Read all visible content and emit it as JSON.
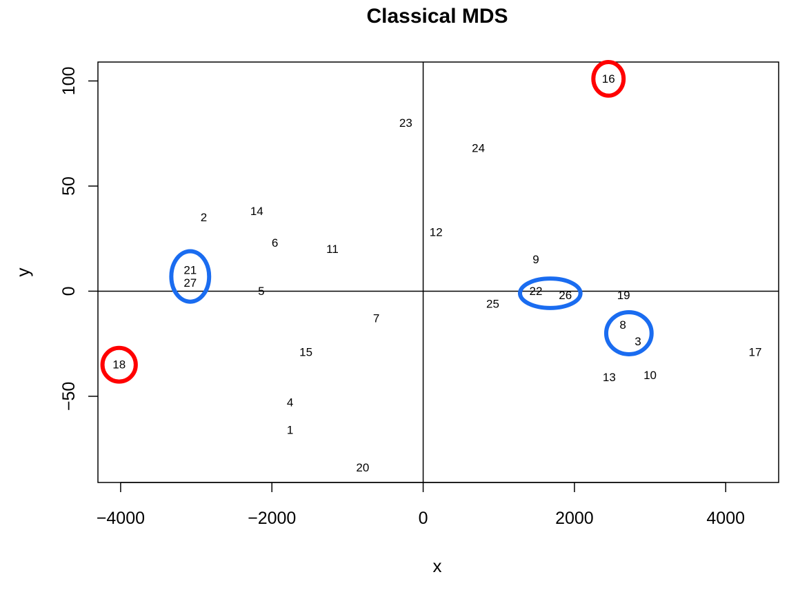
{
  "chart_data": {
    "type": "scatter",
    "title": "Classical MDS",
    "xlabel": "x",
    "ylabel": "y",
    "xlim": [
      -4300,
      4700
    ],
    "ylim": [
      -91,
      109
    ],
    "xticks": [
      -4000,
      -2000,
      0,
      2000,
      4000
    ],
    "yticks": [
      -50,
      0,
      50,
      100
    ],
    "reference_lines": {
      "x": 0,
      "y": 0
    },
    "grid": false,
    "points": [
      {
        "label": "1",
        "x": -1760,
        "y": -66
      },
      {
        "label": "2",
        "x": -2900,
        "y": 35
      },
      {
        "label": "3",
        "x": 2840,
        "y": -24
      },
      {
        "label": "4",
        "x": -1760,
        "y": -53
      },
      {
        "label": "5",
        "x": -2140,
        "y": 0
      },
      {
        "label": "6",
        "x": -1960,
        "y": 23
      },
      {
        "label": "7",
        "x": -620,
        "y": -13
      },
      {
        "label": "8",
        "x": 2640,
        "y": -16
      },
      {
        "label": "9",
        "x": 1490,
        "y": 15
      },
      {
        "label": "10",
        "x": 3000,
        "y": -40
      },
      {
        "label": "11",
        "x": -1200,
        "y": 20
      },
      {
        "label": "12",
        "x": 170,
        "y": 28
      },
      {
        "label": "13",
        "x": 2460,
        "y": -41
      },
      {
        "label": "14",
        "x": -2200,
        "y": 38
      },
      {
        "label": "15",
        "x": -1550,
        "y": -29
      },
      {
        "label": "16",
        "x": 2450,
        "y": 101
      },
      {
        "label": "17",
        "x": 4390,
        "y": -29
      },
      {
        "label": "18",
        "x": -4020,
        "y": -35
      },
      {
        "label": "19",
        "x": 2650,
        "y": -2
      },
      {
        "label": "20",
        "x": -800,
        "y": -84
      },
      {
        "label": "21",
        "x": -3080,
        "y": 10
      },
      {
        "label": "22",
        "x": 1490,
        "y": 0
      },
      {
        "label": "23",
        "x": -230,
        "y": 80
      },
      {
        "label": "24",
        "x": 730,
        "y": 68
      },
      {
        "label": "25",
        "x": 920,
        "y": -6
      },
      {
        "label": "26",
        "x": 1880,
        "y": -2
      },
      {
        "label": "27",
        "x": -3080,
        "y": 4
      }
    ],
    "highlights": [
      {
        "color": "#ff0000",
        "shape": "circle",
        "center": [
          2450,
          101
        ],
        "radius": [
          200,
          8
        ]
      },
      {
        "color": "#ff0000",
        "shape": "circle",
        "center": [
          -4020,
          -35
        ],
        "radius": [
          220,
          8
        ]
      },
      {
        "color": "#1a6cf0",
        "shape": "ellipse",
        "center": [
          -3080,
          7
        ],
        "radius": [
          250,
          12
        ]
      },
      {
        "color": "#1a6cf0",
        "shape": "ellipse",
        "center": [
          1680,
          -1
        ],
        "radius": [
          400,
          7
        ]
      },
      {
        "color": "#1a6cf0",
        "shape": "ellipse",
        "center": [
          2720,
          -20
        ],
        "radius": [
          300,
          10
        ]
      }
    ]
  }
}
